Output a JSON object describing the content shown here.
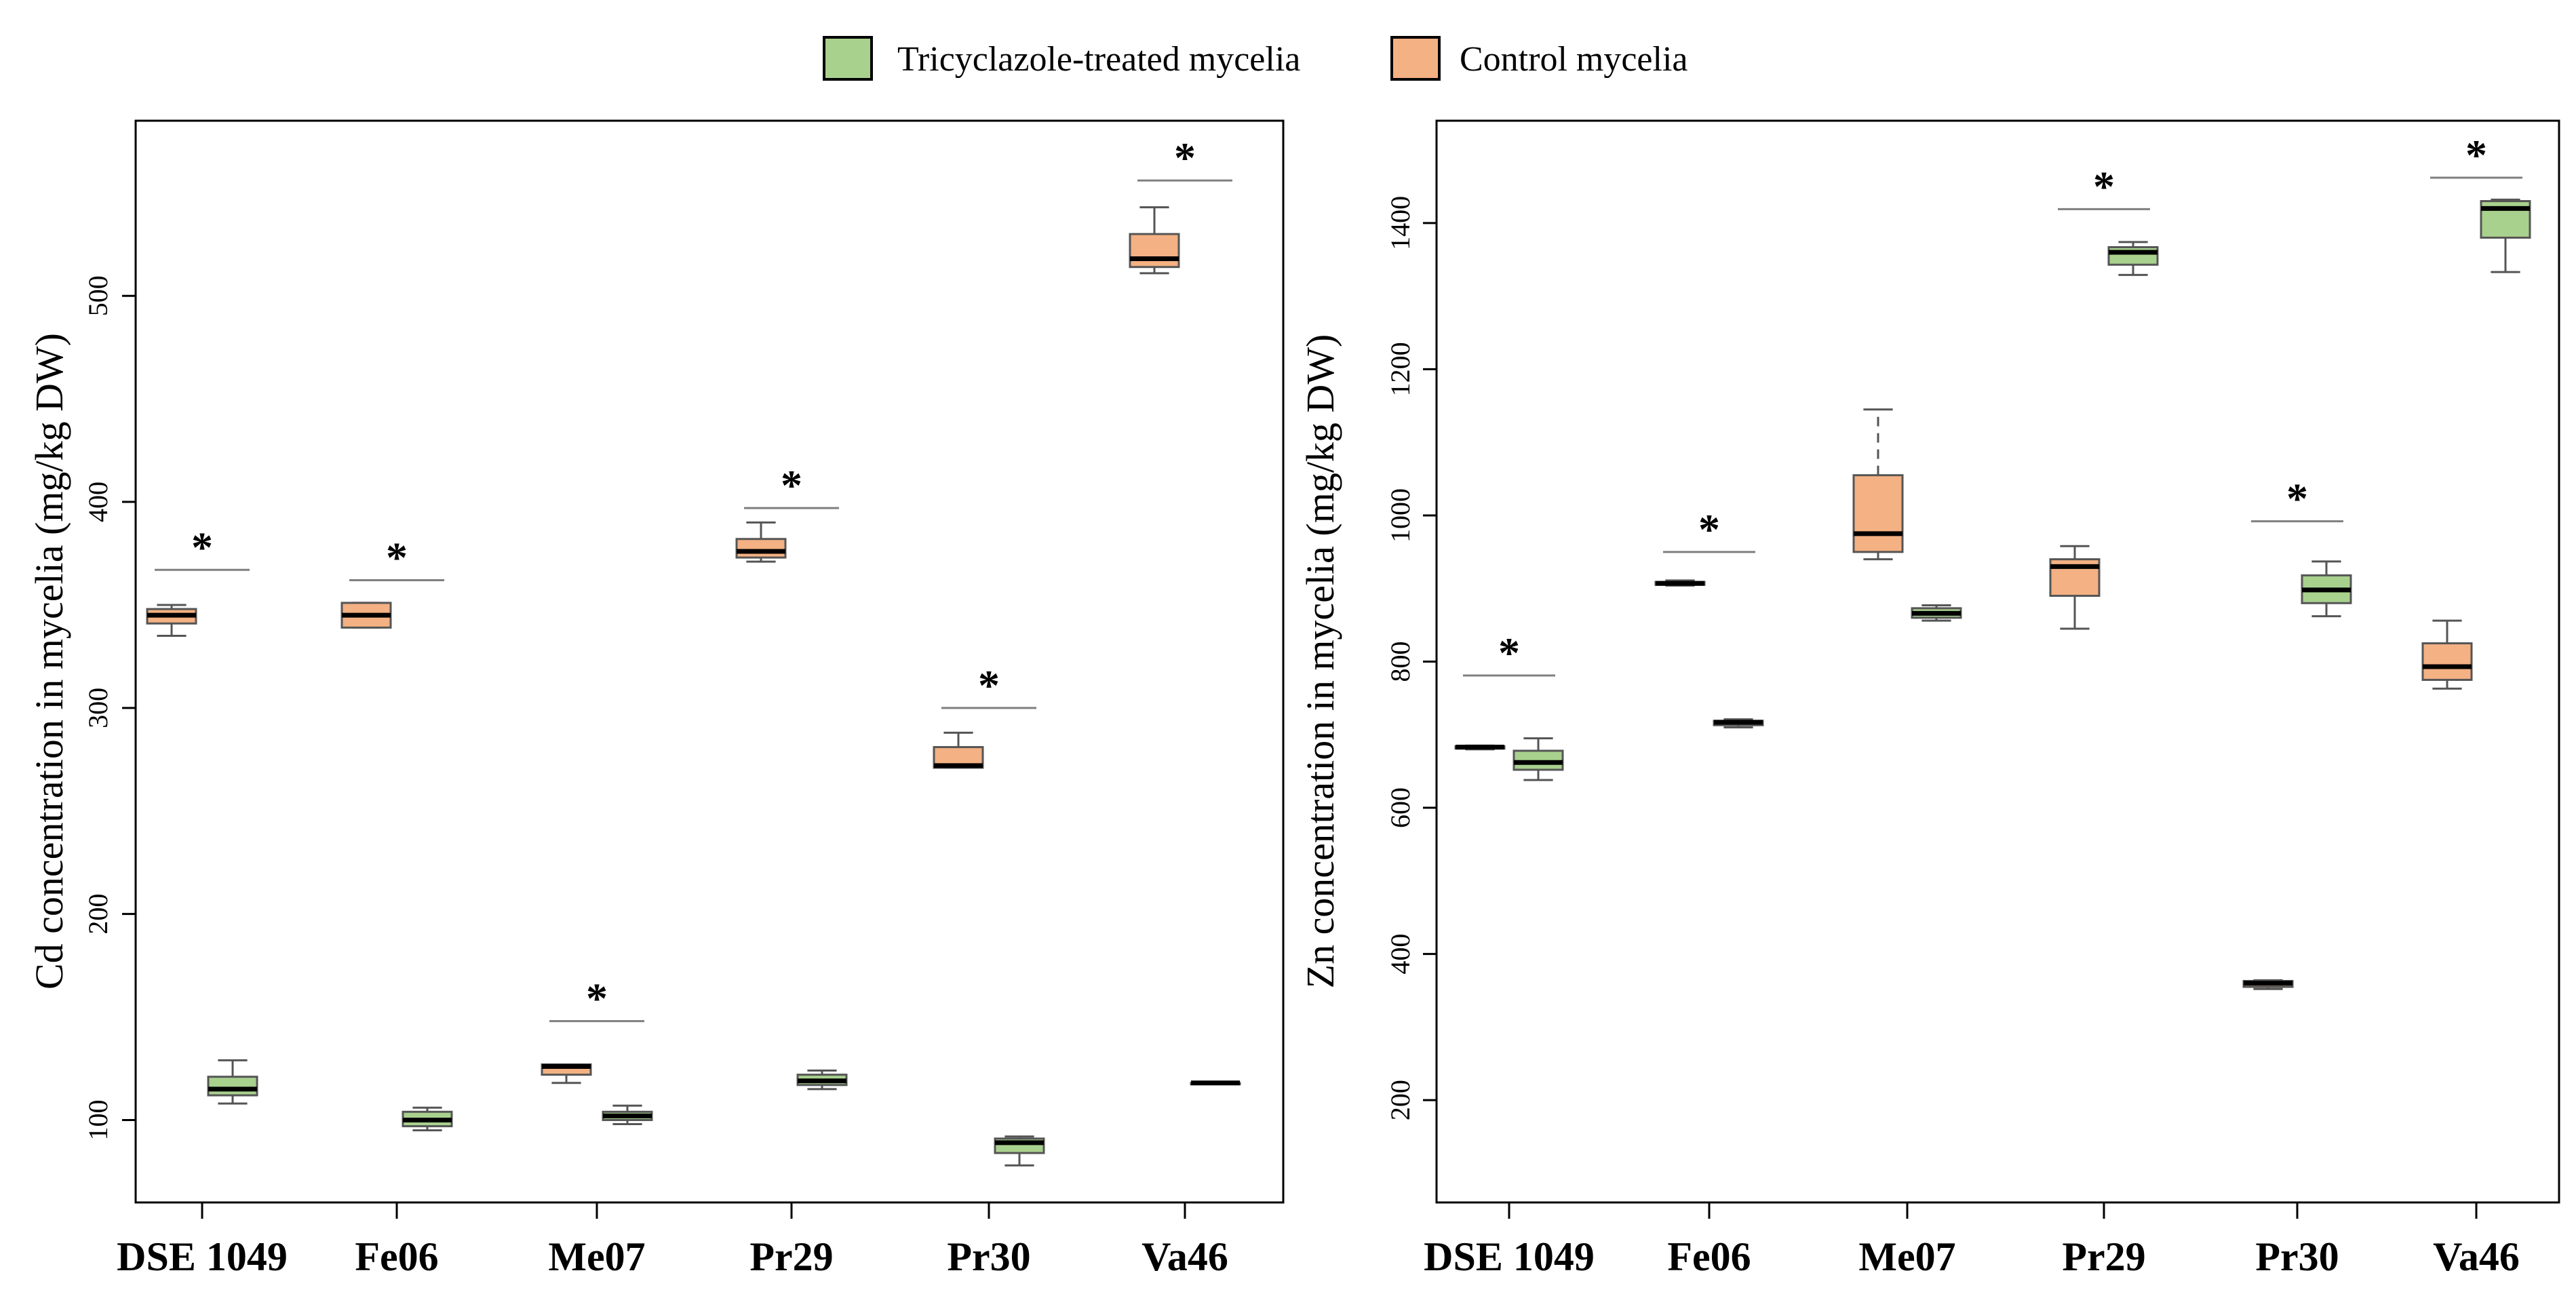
{
  "legend": {
    "items": [
      {
        "label": "Tricyclazole-treated mycelia",
        "color": "#a9d18e"
      },
      {
        "label": "Control mycelia",
        "color": "#f4b183"
      }
    ]
  },
  "chart_data": [
    {
      "type": "box",
      "ylabel": "Cd concentration in mycelia (mg/kg DW)",
      "categories": [
        "DSE 1049",
        "Fe06",
        "Me07",
        "Pr29",
        "Pr30",
        "Va46"
      ],
      "yticks": [
        100,
        200,
        300,
        400,
        500
      ],
      "ylim": [
        60,
        585
      ],
      "significance_marker": "*",
      "series": [
        {
          "name": "Control mycelia",
          "color": "#f4b183",
          "position": "left",
          "boxes": [
            {
              "min": 335,
              "q1": 341,
              "median": 345,
              "q3": 348,
              "max": 350
            },
            {
              "min": 339,
              "q1": 339,
              "median": 345,
              "q3": 351,
              "max": 351
            },
            {
              "min": 118,
              "q1": 122,
              "median": 126,
              "q3": 127,
              "max": 127
            },
            {
              "min": 371,
              "q1": 373,
              "median": 376,
              "q3": 382,
              "max": 390
            },
            {
              "min": 271,
              "q1": 271,
              "median": 272,
              "q3": 281,
              "max": 288
            },
            {
              "min": 511,
              "q1": 514,
              "median": 518,
              "q3": 530,
              "max": 543
            }
          ]
        },
        {
          "name": "Tricyclazole-treated mycelia",
          "color": "#a9d18e",
          "position": "right",
          "boxes": [
            {
              "min": 108,
              "q1": 112,
              "median": 115,
              "q3": 121,
              "max": 129
            },
            {
              "min": 95,
              "q1": 97,
              "median": 100,
              "q3": 104,
              "max": 106
            },
            {
              "min": 98,
              "q1": 100,
              "median": 102,
              "q3": 104,
              "max": 107
            },
            {
              "min": 115,
              "q1": 117,
              "median": 119,
              "q3": 122,
              "max": 124
            },
            {
              "min": 78,
              "q1": 84,
              "median": 89,
              "q3": 91,
              "max": 92
            },
            {
              "min": 118,
              "q1": 118,
              "median": 118,
              "q3": 118,
              "max": 118
            }
          ]
        }
      ],
      "significance": [
        {
          "category": "DSE 1049",
          "bar_y": 367
        },
        {
          "category": "Fe06",
          "bar_y": 362
        },
        {
          "category": "Me07",
          "bar_y": 148
        },
        {
          "category": "Pr29",
          "bar_y": 397
        },
        {
          "category": "Pr30",
          "bar_y": 300
        },
        {
          "category": "Va46",
          "bar_y": 556
        }
      ]
    },
    {
      "type": "box",
      "ylabel": "Zn concentration in mycelia (mg/kg DW)",
      "categories": [
        "DSE 1049",
        "Fe06",
        "Me07",
        "Pr29",
        "Pr30",
        "Va46"
      ],
      "yticks": [
        200,
        400,
        600,
        800,
        1000,
        1200,
        1400
      ],
      "ylim": [
        60,
        1540
      ],
      "significance_marker": "*",
      "series": [
        {
          "name": "Control mycelia",
          "color": "#f4b183",
          "position": "left",
          "boxes": [
            {
              "min": 680,
              "q1": 681,
              "median": 683,
              "q3": 684,
              "max": 685
            },
            {
              "min": 904,
              "q1": 905,
              "median": 907,
              "q3": 909,
              "max": 911
            },
            {
              "min": 940,
              "q1": 950,
              "median": 975,
              "q3": 1055,
              "max": 1145
            },
            {
              "min": 845,
              "q1": 890,
              "median": 930,
              "q3": 940,
              "max": 958
            },
            {
              "min": 352,
              "q1": 355,
              "median": 360,
              "q3": 363,
              "max": 364
            },
            {
              "min": 763,
              "q1": 775,
              "median": 793,
              "q3": 825,
              "max": 856
            }
          ]
        },
        {
          "name": "Tricyclazole-treated mycelia",
          "color": "#a9d18e",
          "position": "right",
          "boxes": [
            {
              "min": 638,
              "q1": 652,
              "median": 662,
              "q3": 678,
              "max": 695
            },
            {
              "min": 710,
              "q1": 713,
              "median": 717,
              "q3": 719,
              "max": 721
            },
            {
              "min": 856,
              "q1": 860,
              "median": 866,
              "q3": 873,
              "max": 877
            },
            {
              "min": 1329,
              "q1": 1343,
              "median": 1360,
              "q3": 1367,
              "max": 1374
            },
            {
              "min": 862,
              "q1": 880,
              "median": 898,
              "q3": 918,
              "max": 937
            },
            {
              "min": 1333,
              "q1": 1380,
              "median": 1420,
              "q3": 1430,
              "max": 1432
            }
          ]
        }
      ],
      "significance": [
        {
          "category": "DSE 1049",
          "bar_y": 781
        },
        {
          "category": "Fe06",
          "bar_y": 950
        },
        {
          "category": "Pr29",
          "bar_y": 1419
        },
        {
          "category": "Pr30",
          "bar_y": 992
        },
        {
          "category": "Va46",
          "bar_y": 1462
        }
      ]
    }
  ]
}
